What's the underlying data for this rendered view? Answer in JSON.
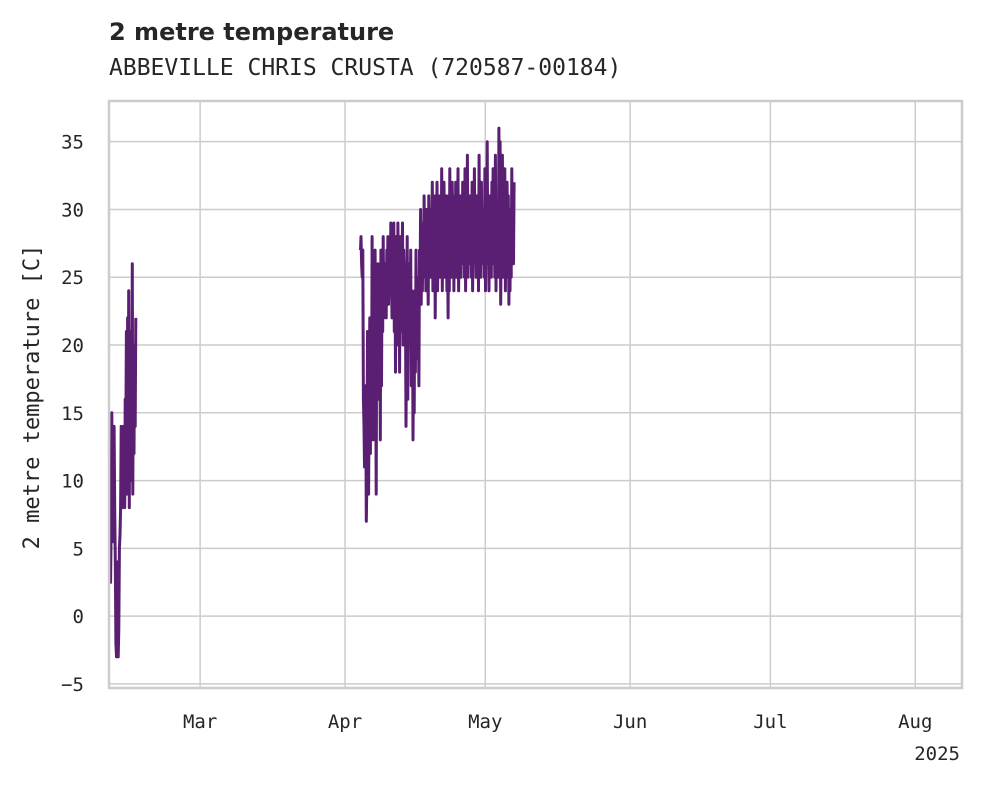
{
  "chart_data": {
    "type": "line",
    "title": "2 metre temperature",
    "subtitle": "ABBEVILLE CHRIS CRUSTA (720587-00184)",
    "xlabel": "",
    "ylabel": "2 metre temperature [C]",
    "ylim": [
      -5.3,
      38
    ],
    "yticks": [
      -5,
      0,
      5,
      10,
      15,
      20,
      25,
      30,
      35
    ],
    "xlim_day_of_year": [
      40.5,
      223
    ],
    "xticks": [
      {
        "label": "Mar",
        "day": 60
      },
      {
        "label": "Apr",
        "day": 91
      },
      {
        "label": "May",
        "day": 121
      },
      {
        "label": "Jun",
        "day": 152
      },
      {
        "label": "Jul",
        "day": 182
      },
      {
        "label": "Aug",
        "day": 213
      }
    ],
    "year_label": "2025",
    "grid": true,
    "color": "#5a1f72",
    "series": [
      {
        "name": "2 metre temperature",
        "segments": [
          {
            "start_day": 40.6,
            "step_days": 0.125,
            "values": [
              8,
              5,
              2.5,
              7,
              15,
              9,
              5.5,
              13,
              14,
              8,
              4,
              -2,
              -3,
              1,
              4,
              -3,
              -1,
              5,
              6,
              8,
              14,
              9,
              8,
              12,
              14,
              10,
              8,
              16,
              13,
              21,
              9,
              22,
              13,
              24,
              8,
              20,
              10,
              21,
              15,
              26,
              9,
              20,
              12,
              20,
              14,
              22
            ]
          },
          {
            "start_day": 94.3,
            "step_days": 0.125,
            "values": [
              27,
              28,
              26,
              25,
              27,
              16,
              14,
              11,
              13,
              17,
              7,
              10,
              21,
              13,
              9,
              17,
              22,
              12,
              22,
              16,
              28,
              17,
              13,
              26,
              15,
              27,
              18,
              9,
              25,
              17,
              26,
              16,
              20,
              25,
              13,
              27,
              17,
              26,
              21,
              28,
              22,
              25,
              26,
              24,
              22,
              27,
              24,
              28,
              23,
              25,
              27,
              24,
              29,
              25,
              22,
              27,
              24,
              29,
              21,
              27,
              18,
              28,
              24,
              20,
              29,
              23,
              27,
              18,
              28,
              21,
              26,
              24,
              29,
              20,
              27,
              25,
              22,
              24,
              14,
              21,
              28,
              16,
              25,
              20,
              26,
              23,
              27,
              17,
              24,
              22,
              13,
              20,
              15,
              24,
              18,
              27,
              21,
              25,
              19,
              23,
              17,
              27,
              25,
              30,
              23,
              28,
              24,
              29,
              25,
              31,
              26,
              28,
              24,
              30,
              25,
              27,
              23,
              31,
              26,
              29,
              25,
              30,
              27,
              32,
              24,
              29,
              26,
              31,
              22,
              28,
              25,
              32,
              24,
              30,
              27,
              31,
              25,
              29,
              26,
              33,
              24,
              30,
              27,
              32,
              25,
              29,
              26,
              31,
              24,
              28,
              22,
              31,
              24,
              33,
              26,
              29,
              25,
              32,
              27,
              30,
              24,
              31,
              26,
              32,
              25,
              29,
              27,
              33,
              24,
              28,
              26,
              31,
              25,
              30,
              27,
              32,
              26,
              29,
              25,
              33,
              24,
              30,
              27,
              34,
              25,
              29,
              26,
              31,
              27,
              30,
              25,
              32,
              24,
              28,
              26,
              33,
              27,
              29,
              25,
              31,
              26,
              30,
              24,
              34,
              26,
              28,
              25,
              32,
              27,
              29,
              26,
              30,
              25,
              33,
              24,
              30,
              27,
              35,
              26,
              29,
              24,
              31,
              27,
              28,
              25,
              32,
              26,
              33,
              27,
              29,
              25,
              34,
              24,
              30,
              26,
              28,
              25,
              36,
              27,
              35,
              23,
              29,
              26,
              34,
              25,
              30,
              27,
              33,
              24,
              28,
              26,
              32,
              25,
              31,
              23,
              29,
              24,
              30,
              25,
              33,
              27,
              28,
              26,
              32
            ]
          }
        ]
      }
    ]
  }
}
